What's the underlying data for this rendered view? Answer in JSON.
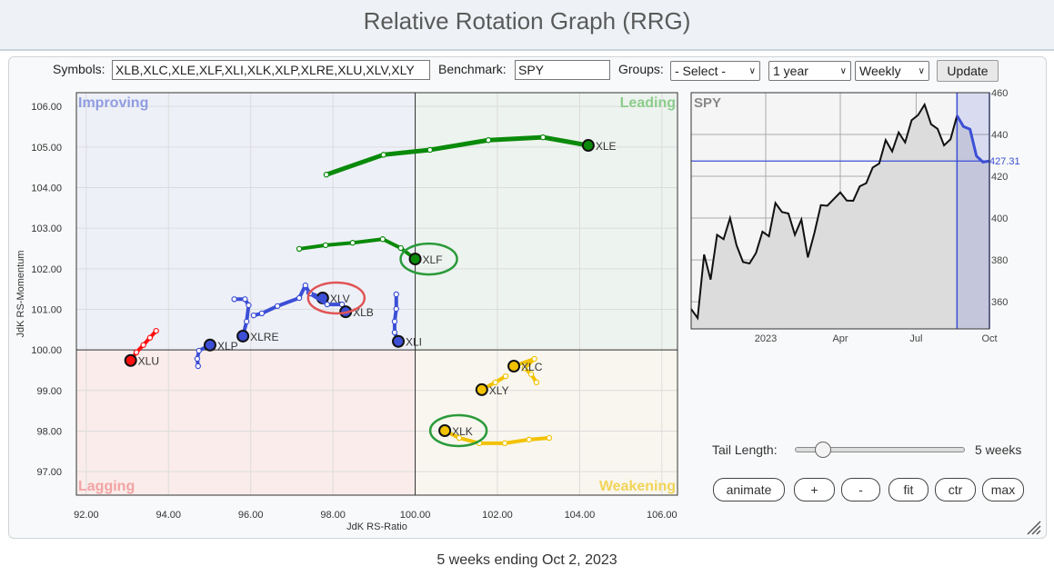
{
  "header": {
    "title": "Relative Rotation Graph (RRG)"
  },
  "toolbar": {
    "symbols_label": "Symbols:",
    "symbols_value": "XLB,XLC,XLE,XLF,XLI,XLK,XLP,XLRE,XLU,XLV,XLY",
    "benchmark_label": "Benchmark:",
    "benchmark_value": "SPY",
    "groups_label": "Groups:",
    "groups_value": "- Select -",
    "period_value": "1 year",
    "frequency_value": "Weekly",
    "update_label": "Update"
  },
  "rrg": {
    "xlabel": "JdK RS-Ratio",
    "ylabel": "JdK RS-Momentum",
    "xlim": [
      91.76,
      106.38
    ],
    "ylim": [
      96.42,
      106.34
    ],
    "x_ticks": [
      "92.00",
      "94.00",
      "96.00",
      "98.00",
      "100.00",
      "102.00",
      "104.00",
      "106.00"
    ],
    "y_ticks": [
      "97.00",
      "98.00",
      "99.00",
      "100.00",
      "101.00",
      "102.00",
      "103.00",
      "104.00",
      "105.00",
      "106.00"
    ],
    "center": [
      100,
      100
    ],
    "quadrants": {
      "improving": {
        "label": "Improving",
        "color": "#8f9ce0",
        "bg": "#eef0f8"
      },
      "leading": {
        "label": "Leading",
        "color": "#8ccc8c",
        "bg": "#edf3ee"
      },
      "lagging": {
        "label": "Lagging",
        "color": "#f2a3a3",
        "bg": "#faecea"
      },
      "weakening": {
        "label": "Weakening",
        "color": "#f2d458",
        "bg": "#f8f6ee"
      }
    },
    "series": [
      {
        "name": "XLE",
        "color": "#0a8a0a",
        "points": [
          [
            97.84,
            104.32
          ],
          [
            99.23,
            104.81
          ],
          [
            100.36,
            104.93
          ],
          [
            101.78,
            105.17
          ],
          [
            103.11,
            105.24
          ],
          [
            104.21,
            105.04
          ]
        ]
      },
      {
        "name": "XLF",
        "color": "#0a8a0a",
        "points": [
          [
            97.18,
            102.49
          ],
          [
            97.82,
            102.58
          ],
          [
            98.48,
            102.64
          ],
          [
            99.21,
            102.73
          ],
          [
            99.65,
            102.51
          ],
          [
            100.0,
            102.24
          ]
        ]
      },
      {
        "name": "XLV",
        "color": "#3c4fd6",
        "points": [
          [
            96.07,
            100.85
          ],
          [
            96.27,
            100.9
          ],
          [
            96.65,
            101.08
          ],
          [
            97.18,
            101.28
          ],
          [
            97.33,
            101.59
          ],
          [
            97.42,
            101.41
          ],
          [
            97.75,
            101.28
          ]
        ]
      },
      {
        "name": "XLB",
        "color": "#3c4fd6",
        "points": [
          [
            97.44,
            101.39
          ],
          [
            97.86,
            101.12
          ],
          [
            98.22,
            101.12
          ],
          [
            98.31,
            100.94
          ]
        ]
      },
      {
        "name": "XLRE",
        "color": "#3c4fd6",
        "points": [
          [
            95.6,
            101.25
          ],
          [
            95.86,
            101.25
          ],
          [
            95.95,
            101.1
          ],
          [
            95.9,
            100.7
          ],
          [
            95.81,
            100.34
          ]
        ]
      },
      {
        "name": "XLI",
        "color": "#3c4fd6",
        "points": [
          [
            99.54,
            101.37
          ],
          [
            99.54,
            101.01
          ],
          [
            99.5,
            100.7
          ],
          [
            99.5,
            100.43
          ],
          [
            99.59,
            100.21
          ]
        ]
      },
      {
        "name": "XLP",
        "color": "#3c4fd6",
        "points": [
          [
            94.72,
            99.6
          ],
          [
            94.7,
            99.78
          ],
          [
            94.74,
            99.98
          ],
          [
            95.01,
            100.12
          ]
        ]
      },
      {
        "name": "XLU",
        "color": "#ff1010",
        "points": [
          [
            93.7,
            100.47
          ],
          [
            93.55,
            100.3
          ],
          [
            93.39,
            100.12
          ],
          [
            93.22,
            99.94
          ],
          [
            93.08,
            99.74
          ]
        ]
      },
      {
        "name": "XLC",
        "color": "#f2c200",
        "points": [
          [
            102.95,
            99.2
          ],
          [
            102.82,
            99.4
          ],
          [
            102.66,
            99.55
          ],
          [
            102.9,
            99.78
          ],
          [
            102.4,
            99.6
          ]
        ]
      },
      {
        "name": "XLY",
        "color": "#f2c200",
        "points": [
          [
            102.2,
            99.35
          ],
          [
            101.95,
            99.2
          ],
          [
            101.62,
            99.02
          ]
        ]
      },
      {
        "name": "XLK",
        "color": "#f2c200",
        "points": [
          [
            103.26,
            97.83
          ],
          [
            102.77,
            97.79
          ],
          [
            102.18,
            97.7
          ],
          [
            101.56,
            97.7
          ],
          [
            101.07,
            97.83
          ],
          [
            100.72,
            98.01
          ]
        ]
      }
    ],
    "highlights": [
      {
        "symbol": "XLF",
        "color": "#2a9a3a"
      },
      {
        "symbol": "XLV",
        "color": "#e05555"
      },
      {
        "symbol": "XLK",
        "color": "#2a9a3a"
      }
    ]
  },
  "benchmark_chart": {
    "type": "area",
    "title": "SPY",
    "last_value": "427.31",
    "ylim": [
      347,
      460
    ],
    "y_ticks": [
      "360",
      "380",
      "400",
      "420",
      "440",
      "460"
    ],
    "x_ticks": [
      {
        "label": "2023",
        "index": 11.5
      },
      {
        "label": "Apr",
        "index": 23
      },
      {
        "label": "Jul",
        "index": 34.7
      },
      {
        "label": "Oct",
        "index": 46
      }
    ],
    "tail_weeks": 5,
    "line_color": "#111111",
    "tail_color": "#3c4fd6",
    "values": [
      356.5,
      352.2,
      382.6,
      370.6,
      392,
      389.9,
      400,
      387,
      379,
      378.3,
      383.3,
      393.5,
      391.3,
      407.2,
      402.9,
      402.2,
      392,
      399.3,
      381.2,
      392.8,
      406.2,
      405.9,
      409.1,
      412.3,
      408.4,
      408.3,
      415.2,
      416.7,
      424.2,
      426.1,
      437.3,
      431.9,
      441,
      436.2,
      446.8,
      449.3,
      454.3,
      444.9,
      442.7,
      434.8,
      437.7,
      449,
      443.8,
      442.5,
      429.7,
      426.8,
      427.31
    ]
  },
  "controls": {
    "tail_label": "Tail Length:",
    "tail_value": "5 weeks",
    "tail_slider_fraction": 0.16,
    "buttons": [
      "animate",
      "+",
      "-",
      "fit",
      "ctr",
      "max"
    ]
  },
  "footer": {
    "text": "5 weeks ending Oct 2, 2023"
  }
}
